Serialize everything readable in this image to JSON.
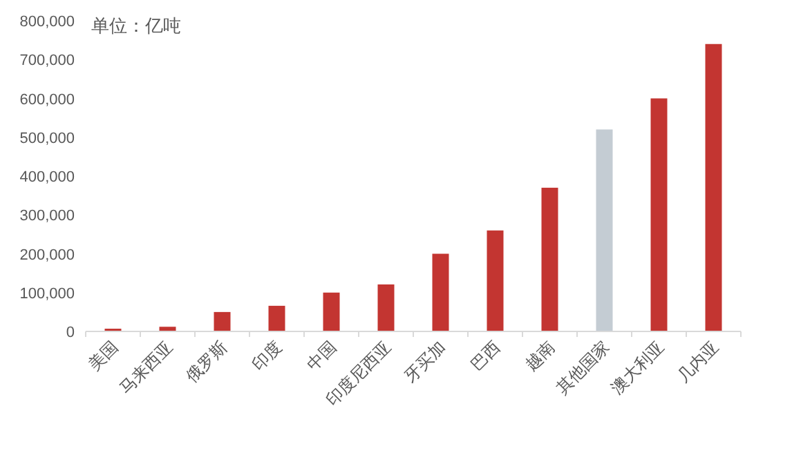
{
  "chart_data": {
    "type": "bar",
    "categories": [
      "美国",
      "马来西亚",
      "俄罗斯",
      "印度",
      "中国",
      "印度尼西亚",
      "牙买加",
      "巴西",
      "越南",
      "其他国家",
      "澳大利亚",
      "几内亚"
    ],
    "values": [
      7000,
      12000,
      50000,
      66000,
      100000,
      121000,
      200000,
      260000,
      370000,
      520000,
      600000,
      740000
    ],
    "colors": [
      "#c33531",
      "#c33531",
      "#c33531",
      "#c33531",
      "#c33531",
      "#c33531",
      "#c33531",
      "#c33531",
      "#c33531",
      "#c4ccd3",
      "#c33531",
      "#c33531"
    ],
    "ylim": [
      0,
      800000
    ],
    "yticks": [
      0,
      {
        "value": 100000,
        "label": "100,000"
      },
      {
        "value": 200000,
        "label": "200,000"
      },
      {
        "value": 300000,
        "label": "300,000"
      },
      {
        "value": 400000,
        "label": "400,000"
      },
      {
        "value": 500000,
        "label": "500,000"
      },
      {
        "value": 600000,
        "label": "600,000"
      },
      {
        "value": 700000,
        "label": "700,000"
      },
      {
        "value": 800000,
        "label": "800,000"
      }
    ],
    "annotations": [
      "单位：亿吨"
    ]
  }
}
